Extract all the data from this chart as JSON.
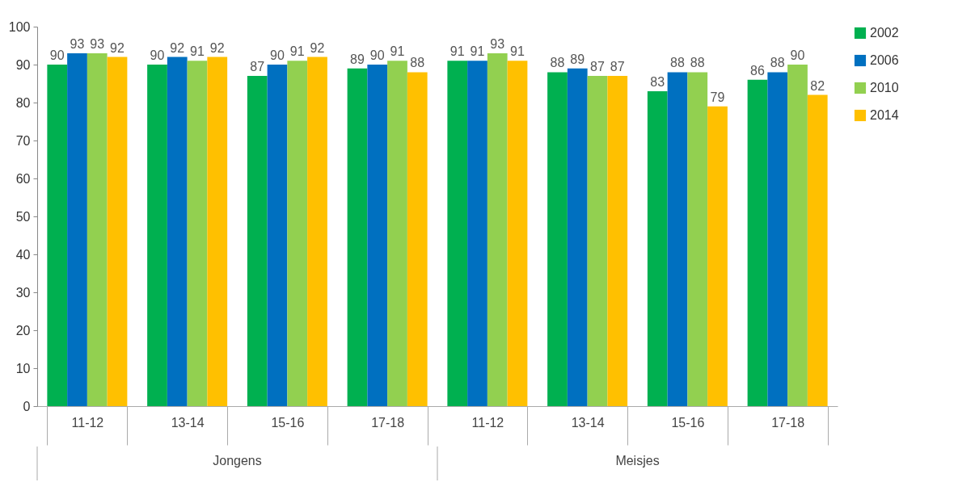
{
  "chart_data": {
    "type": "bar",
    "categories": [
      "11-12",
      "13-14",
      "15-16",
      "17-18",
      "11-12",
      "13-14",
      "15-16",
      "17-18"
    ],
    "annotations": [
      "Jongens",
      "Meisjes"
    ],
    "series": [
      {
        "name": "2002",
        "color": "#00b050",
        "values": [
          90,
          90,
          87,
          89,
          91,
          88,
          83,
          86
        ]
      },
      {
        "name": "2006",
        "color": "#0070c0",
        "values": [
          93,
          92,
          90,
          90,
          91,
          89,
          88,
          88
        ]
      },
      {
        "name": "2010",
        "color": "#92d050",
        "values": [
          93,
          91,
          91,
          91,
          93,
          87,
          88,
          90
        ]
      },
      {
        "name": "2014",
        "color": "#ffc000",
        "values": [
          92,
          92,
          92,
          88,
          91,
          87,
          79,
          82
        ]
      }
    ],
    "ylim": [
      0,
      100
    ],
    "yticks": [
      0,
      10,
      20,
      30,
      40,
      50,
      60,
      70,
      80,
      90,
      100
    ],
    "grid": false,
    "legend": "right",
    "data_labels": true
  }
}
